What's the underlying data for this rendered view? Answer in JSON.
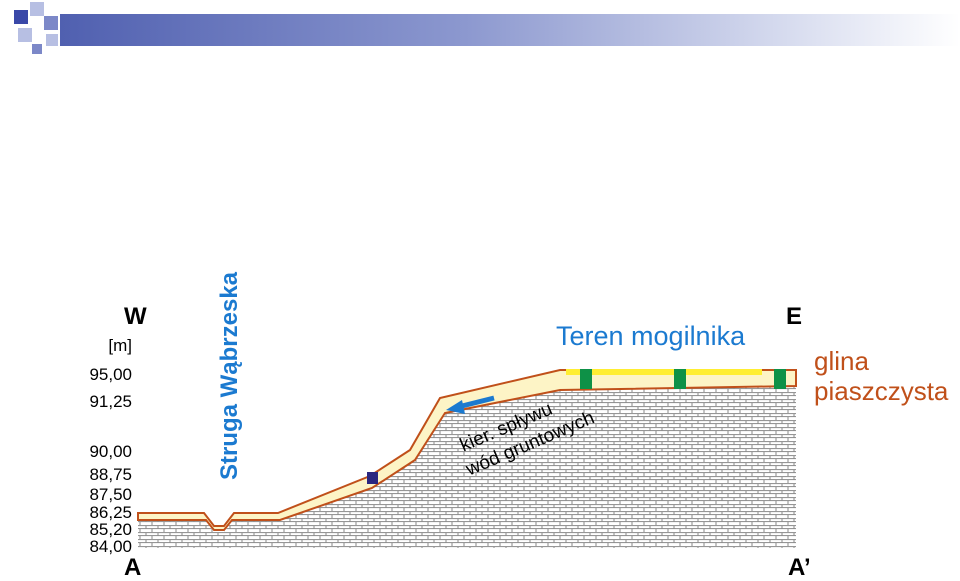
{
  "section": {
    "west": "W",
    "east": "E",
    "start": "A",
    "end": "A’"
  },
  "elevation_axis": {
    "unit": "[m]",
    "levels": [
      "95,00",
      "91,25",
      "90,00",
      "88,75",
      "87,50",
      "86,25",
      "85,20",
      "84,00"
    ]
  },
  "stream_label": "Struga Wąbrzeska",
  "site_label": "Teren mogilnika",
  "flow_label": {
    "line1": "kier. spływu",
    "line2": "wód gruntowych"
  },
  "legend": {
    "line1": "glina",
    "line2": "piaszczysta"
  },
  "colors": {
    "soil_fill": "#fdf4c6",
    "boundary": "#c0501a",
    "accent_blue": "#1b7ad0",
    "marker_green": "#0e9147",
    "band_yellow": "#ffee32",
    "well_marker": "#2a2680",
    "hatch": "#8a8a8a"
  }
}
